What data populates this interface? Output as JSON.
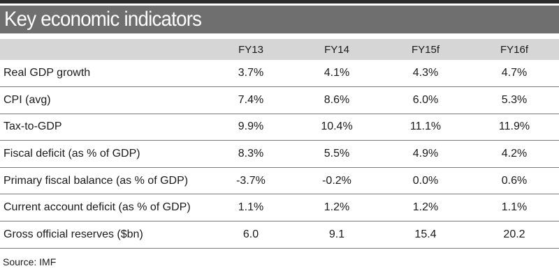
{
  "title": "Key economic indicators",
  "source": "Source: IMF",
  "chart_data": {
    "type": "table",
    "title": "Key economic indicators",
    "columns": [
      "",
      "FY13",
      "FY14",
      "FY15f",
      "FY16f"
    ],
    "rows": [
      {
        "label": "Real GDP growth",
        "values": [
          "3.7%",
          "4.1%",
          "4.3%",
          "4.7%"
        ]
      },
      {
        "label": "CPI (avg)",
        "values": [
          "7.4%",
          "8.6%",
          "6.0%",
          "5.3%"
        ]
      },
      {
        "label": "Tax-to-GDP",
        "values": [
          "9.9%",
          "10.4%",
          "11.1%",
          "11.9%"
        ]
      },
      {
        "label": "Fiscal deficit (as % of GDP)",
        "values": [
          "8.3%",
          "5.5%",
          "4.9%",
          "4.2%"
        ]
      },
      {
        "label": "Primary fiscal balance (as % of GDP)",
        "values": [
          "-3.7%",
          "-0.2%",
          "0.0%",
          "0.6%"
        ]
      },
      {
        "label": "Current account deficit (as % of GDP)",
        "values": [
          "1.1%",
          "1.2%",
          "1.2%",
          "1.1%"
        ]
      },
      {
        "label": "Gross official reserves ($bn)",
        "values": [
          "6.0",
          "9.1",
          "15.4",
          "20.2"
        ]
      }
    ],
    "source": "IMF"
  }
}
